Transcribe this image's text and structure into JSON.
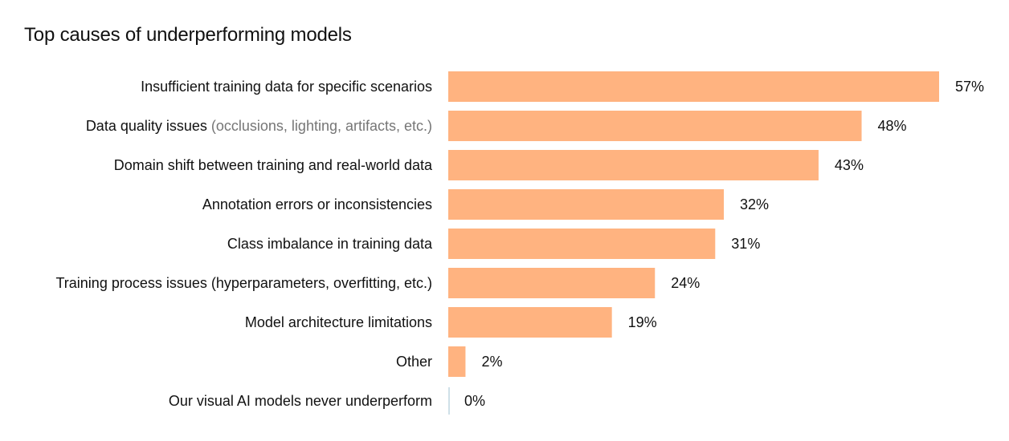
{
  "chart_data": {
    "type": "bar",
    "orientation": "horizontal",
    "title": "Top causes of underperforming models",
    "xlabel": "",
    "ylabel": "",
    "xlim": [
      0,
      57
    ],
    "grid": false,
    "legend": "none",
    "value_suffix": "%",
    "bar_color": "#ffb380",
    "zero_line_color": "#cfe0e8",
    "categories": [
      {
        "label": "Insufficient training data for specific scenarios",
        "note": ""
      },
      {
        "label": "Data quality issues",
        "note": "(occlusions, lighting, artifacts, etc.)"
      },
      {
        "label": "Domain shift between training and real-world data",
        "note": ""
      },
      {
        "label": "Annotation errors or inconsistencies",
        "note": ""
      },
      {
        "label": "Class imbalance in training data",
        "note": ""
      },
      {
        "label": "Training process issues (hyperparameters, overfitting, etc.)",
        "note": ""
      },
      {
        "label": "Model architecture limitations",
        "note": ""
      },
      {
        "label": "Other",
        "note": ""
      },
      {
        "label": "Our visual AI models never underperform",
        "note": ""
      }
    ],
    "values": [
      57,
      48,
      43,
      32,
      31,
      24,
      19,
      2,
      0
    ]
  }
}
